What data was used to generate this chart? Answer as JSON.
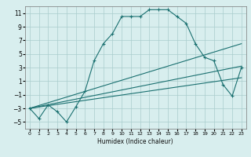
{
  "xlabel": "Humidex (Indice chaleur)",
  "background_color": "#d8eeee",
  "grid_color": "#aacccc",
  "line_color": "#1a7070",
  "xlim": [
    -0.5,
    23.5
  ],
  "ylim": [
    -6,
    12
  ],
  "xticks": [
    0,
    1,
    2,
    3,
    4,
    5,
    6,
    7,
    8,
    9,
    10,
    11,
    12,
    13,
    14,
    15,
    16,
    17,
    18,
    19,
    20,
    21,
    22,
    23
  ],
  "yticks": [
    -5,
    -3,
    -1,
    1,
    3,
    5,
    7,
    9,
    11
  ],
  "line1_x": [
    0,
    1,
    2,
    3,
    4,
    5,
    6,
    7,
    8,
    9,
    10,
    11,
    12,
    13,
    14,
    15,
    16,
    17,
    18,
    19,
    20,
    21,
    22,
    23
  ],
  "line1_y": [
    -3.0,
    -4.5,
    -2.5,
    -3.5,
    -5.0,
    -2.8,
    -0.5,
    4.0,
    6.5,
    8.0,
    10.5,
    10.5,
    10.5,
    11.5,
    11.5,
    11.5,
    10.5,
    9.5,
    6.5,
    4.5,
    4.0,
    0.5,
    -1.2,
    3.0
  ],
  "line2_x": [
    0,
    23
  ],
  "line2_y": [
    -3.0,
    6.5
  ],
  "line3_x": [
    0,
    23
  ],
  "line3_y": [
    -3.0,
    3.2
  ],
  "line4_x": [
    0,
    23
  ],
  "line4_y": [
    -3.0,
    1.5
  ]
}
